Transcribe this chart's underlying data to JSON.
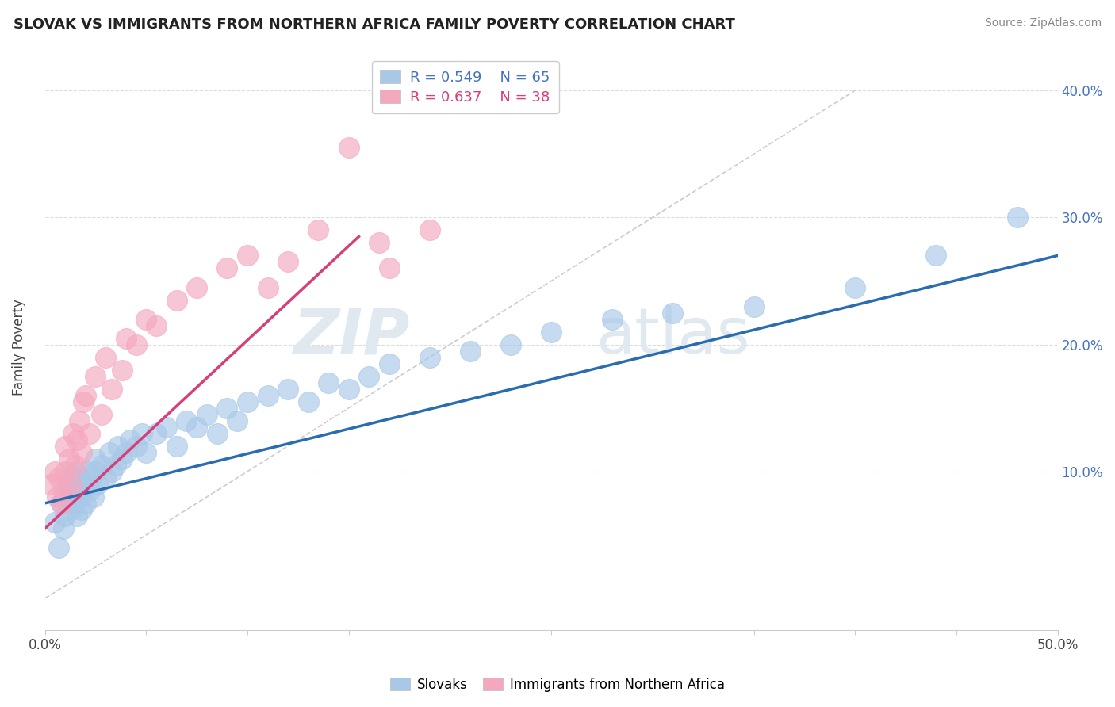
{
  "title": "SLOVAK VS IMMIGRANTS FROM NORTHERN AFRICA FAMILY POVERTY CORRELATION CHART",
  "source": "Source: ZipAtlas.com",
  "ylabel": "Family Poverty",
  "xlim": [
    0,
    0.5
  ],
  "ylim": [
    -0.025,
    0.42
  ],
  "r_blue": 0.549,
  "n_blue": 65,
  "r_pink": 0.637,
  "n_pink": 38,
  "legend_label_blue": "Slovaks",
  "legend_label_pink": "Immigrants from Northern Africa",
  "blue_color": "#a8c8e8",
  "pink_color": "#f4a8be",
  "blue_line_color": "#2b6cb0",
  "pink_line_color": "#d63f7a",
  "blue_line_x0": 0.0,
  "blue_line_y0": 0.075,
  "blue_line_x1": 0.5,
  "blue_line_y1": 0.27,
  "pink_line_x0": 0.0,
  "pink_line_y0": 0.055,
  "pink_line_x1": 0.155,
  "pink_line_y1": 0.285,
  "blue_scatter_x": [
    0.005,
    0.007,
    0.008,
    0.009,
    0.01,
    0.01,
    0.012,
    0.013,
    0.013,
    0.014,
    0.015,
    0.015,
    0.016,
    0.017,
    0.018,
    0.018,
    0.019,
    0.02,
    0.02,
    0.021,
    0.022,
    0.023,
    0.024,
    0.025,
    0.025,
    0.026,
    0.028,
    0.03,
    0.032,
    0.033,
    0.035,
    0.036,
    0.038,
    0.04,
    0.042,
    0.045,
    0.048,
    0.05,
    0.055,
    0.06,
    0.065,
    0.07,
    0.075,
    0.08,
    0.085,
    0.09,
    0.095,
    0.1,
    0.11,
    0.12,
    0.13,
    0.14,
    0.15,
    0.16,
    0.17,
    0.19,
    0.21,
    0.23,
    0.25,
    0.28,
    0.31,
    0.35,
    0.4,
    0.44,
    0.48
  ],
  "blue_scatter_y": [
    0.06,
    0.04,
    0.075,
    0.055,
    0.08,
    0.065,
    0.09,
    0.07,
    0.085,
    0.095,
    0.075,
    0.1,
    0.065,
    0.08,
    0.095,
    0.07,
    0.085,
    0.09,
    0.075,
    0.1,
    0.085,
    0.095,
    0.08,
    0.1,
    0.11,
    0.09,
    0.105,
    0.095,
    0.115,
    0.1,
    0.105,
    0.12,
    0.11,
    0.115,
    0.125,
    0.12,
    0.13,
    0.115,
    0.13,
    0.135,
    0.12,
    0.14,
    0.135,
    0.145,
    0.13,
    0.15,
    0.14,
    0.155,
    0.16,
    0.165,
    0.155,
    0.17,
    0.165,
    0.175,
    0.185,
    0.19,
    0.195,
    0.2,
    0.21,
    0.22,
    0.225,
    0.23,
    0.245,
    0.27,
    0.3
  ],
  "pink_scatter_x": [
    0.003,
    0.005,
    0.006,
    0.007,
    0.008,
    0.009,
    0.01,
    0.01,
    0.012,
    0.013,
    0.014,
    0.015,
    0.016,
    0.017,
    0.018,
    0.019,
    0.02,
    0.022,
    0.025,
    0.028,
    0.03,
    0.033,
    0.038,
    0.04,
    0.045,
    0.05,
    0.055,
    0.065,
    0.075,
    0.09,
    0.1,
    0.11,
    0.12,
    0.135,
    0.15,
    0.165,
    0.17,
    0.19
  ],
  "pink_scatter_y": [
    0.09,
    0.1,
    0.08,
    0.095,
    0.075,
    0.085,
    0.1,
    0.12,
    0.11,
    0.09,
    0.13,
    0.105,
    0.125,
    0.14,
    0.115,
    0.155,
    0.16,
    0.13,
    0.175,
    0.145,
    0.19,
    0.165,
    0.18,
    0.205,
    0.2,
    0.22,
    0.215,
    0.235,
    0.245,
    0.26,
    0.27,
    0.245,
    0.265,
    0.29,
    0.355,
    0.28,
    0.26,
    0.29
  ]
}
